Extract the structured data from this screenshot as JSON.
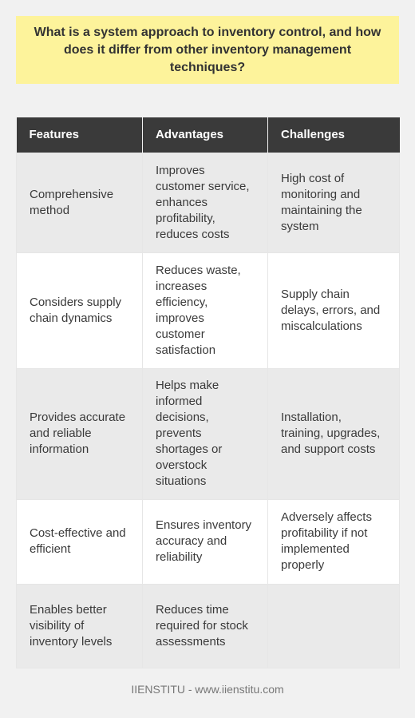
{
  "title": "What is a system approach to inventory control, and how does it differ from other inventory management techniques?",
  "table": {
    "headers": [
      "Features",
      "Advantages",
      "Challenges"
    ],
    "rows": [
      [
        "Comprehensive method",
        "Improves customer service, enhances profitability, reduces costs",
        "High cost of monitoring and maintaining the system"
      ],
      [
        "Considers supply chain dynamics",
        "Reduces waste, increases efficiency, improves customer satisfaction",
        "Supply chain delays, errors, and miscalculations"
      ],
      [
        "Provides accurate and reliable information",
        "Helps make informed decisions, prevents shortages or overstock situations",
        "Installation, training, upgrades, and support costs"
      ],
      [
        "Cost-effective and efficient",
        "Ensures inventory accuracy and reliability",
        "Adversely affects profitability if not implemented properly"
      ],
      [
        "Enables better visibility of inventory levels",
        "Reduces time required for stock assessments",
        ""
      ]
    ]
  },
  "footer": "IIENSTITU - www.iienstitu.com",
  "colors": {
    "title_bg": "#fdf39b",
    "header_bg": "#3a3a3a",
    "page_bg": "#f1f1f1"
  }
}
